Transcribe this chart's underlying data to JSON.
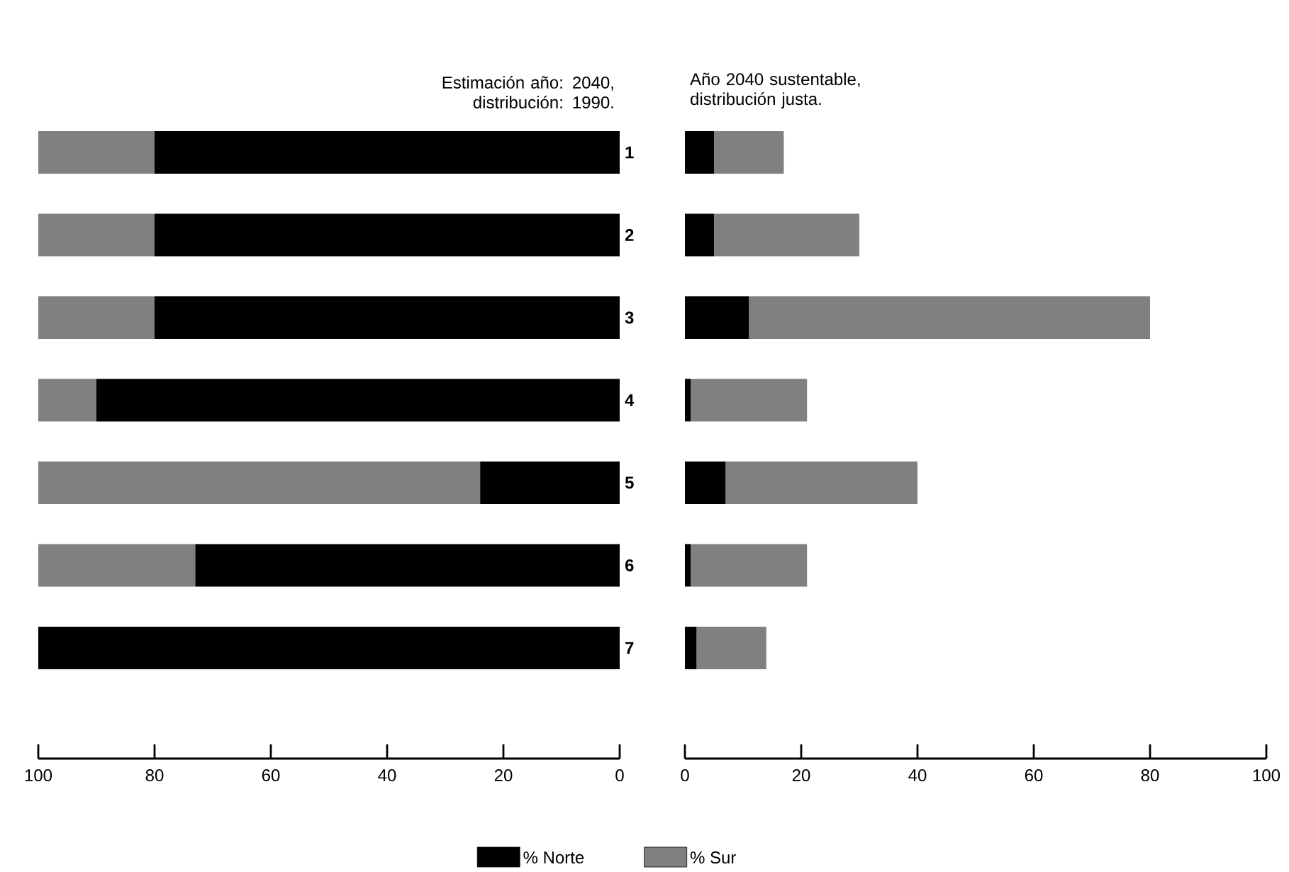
{
  "chart_data": [
    {
      "type": "bar",
      "orientation": "horizontal",
      "stacked": true,
      "title": "Estimación año: 2040, distribución: 1990.",
      "categories": [
        "1",
        "2",
        "3",
        "4",
        "5",
        "6",
        "7"
      ],
      "xlim": [
        100,
        0
      ],
      "xticks": [
        100,
        80,
        60,
        40,
        20,
        0
      ],
      "legend": "bottom",
      "series": [
        {
          "name": "% Norte",
          "color": "#000000",
          "values": [
            80,
            80,
            80,
            90,
            24,
            73,
            100
          ]
        },
        {
          "name": "% Sur",
          "color": "#808080",
          "values": [
            20,
            20,
            20,
            10,
            76,
            27,
            0
          ]
        }
      ]
    },
    {
      "type": "bar",
      "orientation": "horizontal",
      "stacked": true,
      "title": "Año 2040 sustentable, distribución justa.",
      "categories": [
        null,
        null,
        null,
        null,
        null,
        null,
        null
      ],
      "xlim": [
        0,
        100
      ],
      "xticks": [
        0,
        20,
        40,
        60,
        80,
        100
      ],
      "series": [
        {
          "color": "#000000",
          "values": [
            5,
            5,
            11,
            1,
            7,
            1,
            2
          ]
        },
        {
          "color": "#808080",
          "values": [
            12,
            25,
            69,
            20,
            33,
            20,
            12
          ]
        }
      ]
    }
  ]
}
